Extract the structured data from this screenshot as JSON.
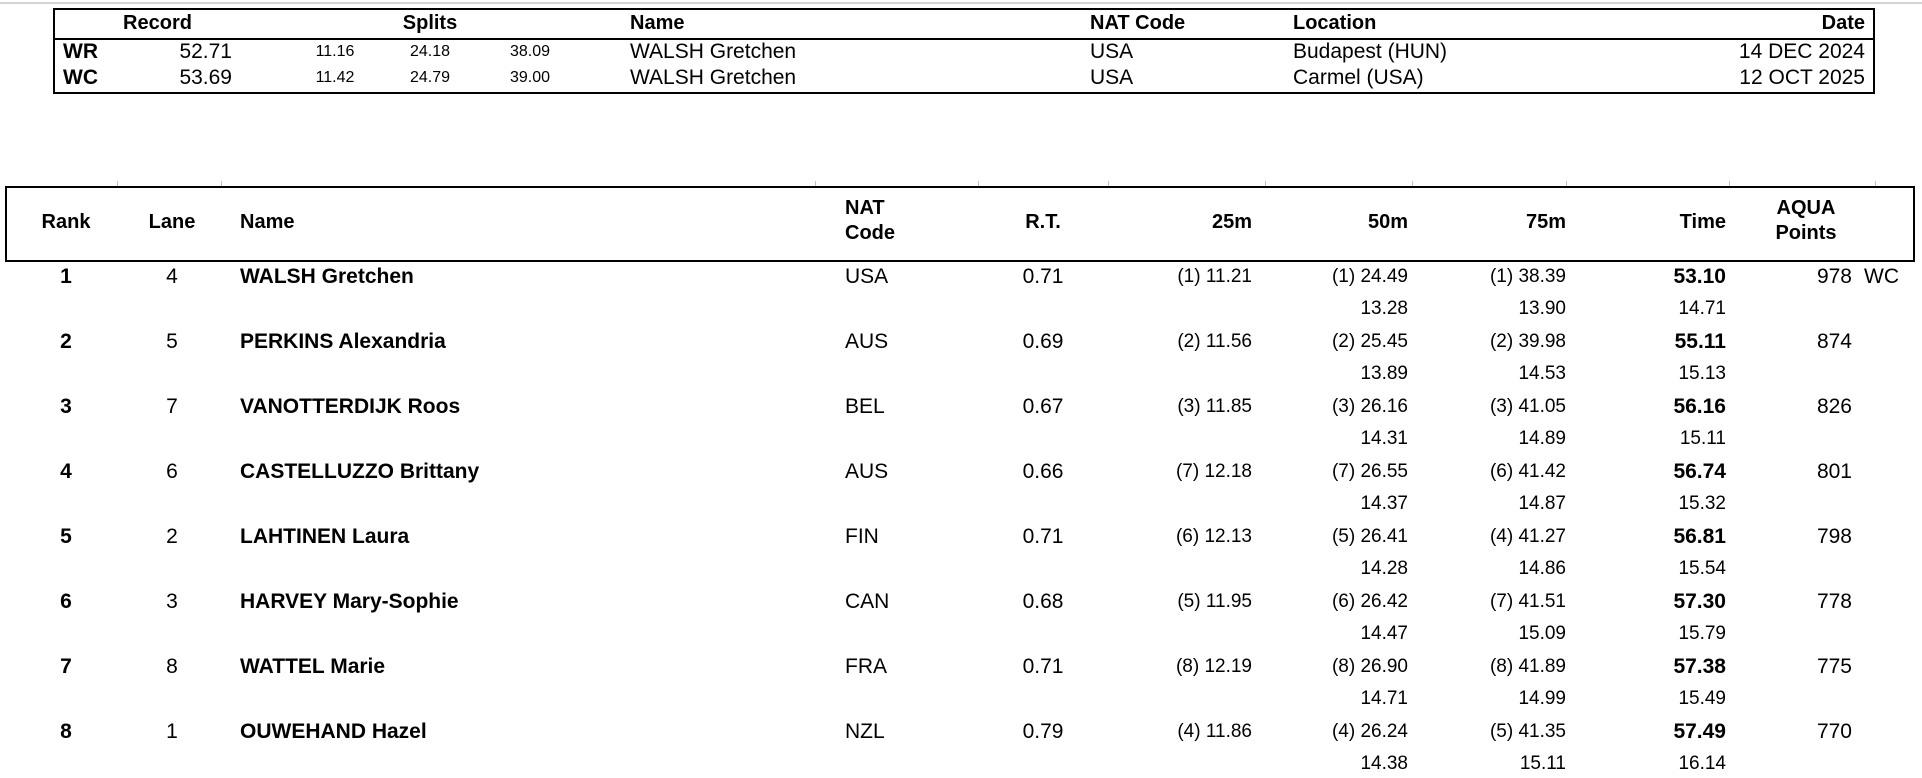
{
  "records": {
    "headers": {
      "record": "Record",
      "splits": "Splits",
      "name": "Name",
      "nat_code": "NAT Code",
      "location": "Location",
      "date": "Date"
    },
    "rows": [
      {
        "tag": "WR",
        "time": "52.71",
        "splits": [
          "11.16",
          "24.18",
          "38.09"
        ],
        "name": "WALSH Gretchen",
        "nat_code": "USA",
        "location": "Budapest (HUN)",
        "date": "14 DEC 2024"
      },
      {
        "tag": "WC",
        "time": "53.69",
        "splits": [
          "11.42",
          "24.79",
          "39.00"
        ],
        "name": "WALSH Gretchen",
        "nat_code": "USA",
        "location": "Carmel (USA)",
        "date": "12 OCT 2025"
      }
    ]
  },
  "results": {
    "headers": {
      "rank": "Rank",
      "lane": "Lane",
      "name": "Name",
      "nat_line1": "NAT",
      "nat_line2": "Code",
      "rt": "R.T.",
      "m25": "25m",
      "m50": "50m",
      "m75": "75m",
      "time": "Time",
      "points_line1": "AQUA",
      "points_line2": "Points"
    },
    "rows": [
      {
        "rank": "1",
        "lane": "4",
        "name": "WALSH Gretchen",
        "nat": "USA",
        "rt": "0.71",
        "p25": "(1) 11.21",
        "p50": "(1) 24.49",
        "p75": "(1) 38.39",
        "time": "53.10",
        "s50": "13.28",
        "s75": "13.90",
        "st": "14.71",
        "points": "978",
        "flag": "WC"
      },
      {
        "rank": "2",
        "lane": "5",
        "name": "PERKINS Alexandria",
        "nat": "AUS",
        "rt": "0.69",
        "p25": "(2) 11.56",
        "p50": "(2) 25.45",
        "p75": "(2) 39.98",
        "time": "55.11",
        "s50": "13.89",
        "s75": "14.53",
        "st": "15.13",
        "points": "874",
        "flag": ""
      },
      {
        "rank": "3",
        "lane": "7",
        "name": "VANOTTERDIJK Roos",
        "nat": "BEL",
        "rt": "0.67",
        "p25": "(3) 11.85",
        "p50": "(3) 26.16",
        "p75": "(3) 41.05",
        "time": "56.16",
        "s50": "14.31",
        "s75": "14.89",
        "st": "15.11",
        "points": "826",
        "flag": ""
      },
      {
        "rank": "4",
        "lane": "6",
        "name": "CASTELLUZZO Brittany",
        "nat": "AUS",
        "rt": "0.66",
        "p25": "(7) 12.18",
        "p50": "(7) 26.55",
        "p75": "(6) 41.42",
        "time": "56.74",
        "s50": "14.37",
        "s75": "14.87",
        "st": "15.32",
        "points": "801",
        "flag": ""
      },
      {
        "rank": "5",
        "lane": "2",
        "name": "LAHTINEN Laura",
        "nat": "FIN",
        "rt": "0.71",
        "p25": "(6) 12.13",
        "p50": "(5) 26.41",
        "p75": "(4) 41.27",
        "time": "56.81",
        "s50": "14.28",
        "s75": "14.86",
        "st": "15.54",
        "points": "798",
        "flag": ""
      },
      {
        "rank": "6",
        "lane": "3",
        "name": "HARVEY Mary-Sophie",
        "nat": "CAN",
        "rt": "0.68",
        "p25": "(5) 11.95",
        "p50": "(6) 26.42",
        "p75": "(7) 41.51",
        "time": "57.30",
        "s50": "14.47",
        "s75": "15.09",
        "st": "15.79",
        "points": "778",
        "flag": ""
      },
      {
        "rank": "7",
        "lane": "8",
        "name": "WATTEL Marie",
        "nat": "FRA",
        "rt": "0.71",
        "p25": "(8) 12.19",
        "p50": "(8) 26.90",
        "p75": "(8) 41.89",
        "time": "57.38",
        "s50": "14.71",
        "s75": "14.99",
        "st": "15.49",
        "points": "775",
        "flag": ""
      },
      {
        "rank": "8",
        "lane": "1",
        "name": "OUWEHAND Hazel",
        "nat": "NZL",
        "rt": "0.79",
        "p25": "(4) 11.86",
        "p50": "(4) 26.24",
        "p75": "(5) 41.35",
        "time": "57.49",
        "s50": "14.38",
        "s75": "15.11",
        "st": "16.14",
        "points": "770",
        "flag": ""
      }
    ]
  }
}
